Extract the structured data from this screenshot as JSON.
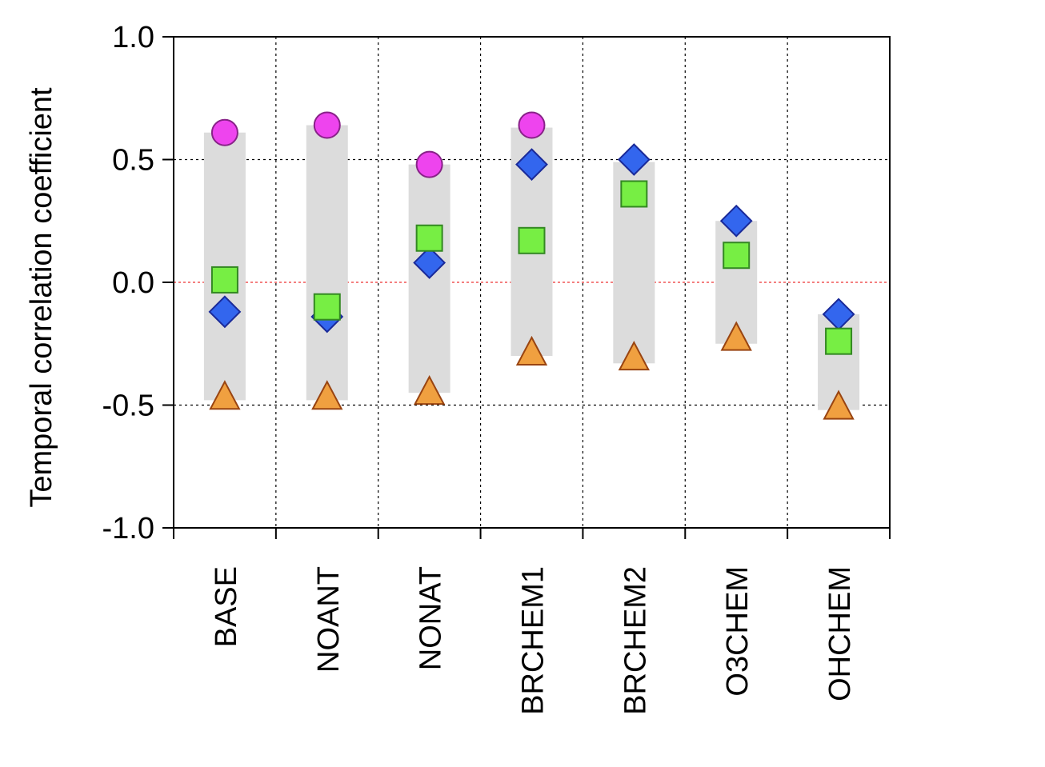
{
  "chart_data": {
    "type": "scatter",
    "ylabel": "Temporal correlation coefficient",
    "xlabel": "",
    "title": "",
    "ylim": [
      -1.0,
      1.0
    ],
    "yticks": [
      "-1.0",
      "-0.5",
      "0.0",
      "0.5",
      "1.0"
    ],
    "grid": "dotted",
    "zero_line": {
      "value": 0.0,
      "color": "#ee3333",
      "style": "dotted"
    },
    "categories": [
      "BASE",
      "NOANT",
      "NONAT",
      "BRCHEM1",
      "BRCHEM2",
      "O3CHEM",
      "OHCHEM"
    ],
    "range_bars": {
      "color": "#dcdcdc",
      "low": [
        -0.48,
        -0.48,
        -0.45,
        -0.3,
        -0.33,
        -0.25,
        -0.52
      ],
      "high": [
        0.61,
        0.64,
        0.48,
        0.63,
        0.49,
        0.25,
        -0.13
      ]
    },
    "series": [
      {
        "marker": "circle",
        "color": "#ee44ee",
        "values": [
          0.61,
          0.64,
          0.48,
          0.64,
          null,
          null,
          null
        ]
      },
      {
        "marker": "diamond",
        "color": "#3366ee",
        "values": [
          -0.12,
          -0.14,
          0.08,
          0.48,
          0.5,
          0.25,
          -0.13
        ]
      },
      {
        "marker": "square",
        "color": "#77ee44",
        "values": [
          0.01,
          -0.1,
          0.18,
          0.17,
          0.36,
          0.11,
          -0.24
        ]
      },
      {
        "marker": "triangle",
        "color": "#f0a040",
        "values": [
          -0.47,
          -0.47,
          -0.45,
          -0.29,
          -0.31,
          -0.23,
          -0.51
        ]
      }
    ]
  }
}
